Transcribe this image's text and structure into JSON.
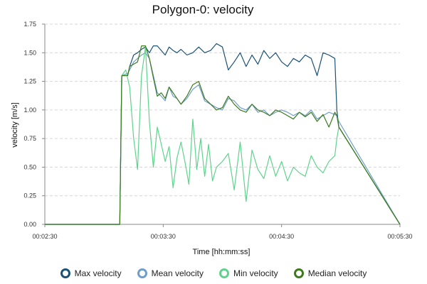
{
  "chart_data": {
    "type": "line",
    "title": "Polygon-0: velocity",
    "xlabel": "Time  [hh:mm:ss]",
    "ylabel": "velocity  [m/s]",
    "xlim": [
      "00:02:30",
      "00:05:30"
    ],
    "ylim": [
      0,
      1.75
    ],
    "x_ticks": [
      "00:02:30",
      "00:03:30",
      "00:04:30",
      "00:05:30"
    ],
    "y_ticks": [
      "0.00",
      "0.25",
      "0.50",
      "0.75",
      "1.00",
      "1.25",
      "1.50",
      "1.75"
    ],
    "grid": true,
    "legend_position": "bottom",
    "series": [
      {
        "name": "Max velocity",
        "color": "#1a5276",
        "x": [
          "00:02:30",
          "00:03:08",
          "00:03:09",
          "00:03:12",
          "00:03:13",
          "00:03:15",
          "00:03:17",
          "00:03:19",
          "00:03:21",
          "00:03:23",
          "00:03:25",
          "00:03:27",
          "00:03:29",
          "00:03:31",
          "00:03:33",
          "00:03:35",
          "00:03:37",
          "00:03:39",
          "00:03:42",
          "00:03:45",
          "00:03:48",
          "00:03:51",
          "00:03:54",
          "00:03:57",
          "00:04:00",
          "00:04:03",
          "00:04:06",
          "00:04:09",
          "00:04:12",
          "00:04:15",
          "00:04:18",
          "00:04:21",
          "00:04:24",
          "00:04:27",
          "00:04:30",
          "00:04:33",
          "00:04:36",
          "00:04:39",
          "00:04:42",
          "00:04:45",
          "00:04:48",
          "00:04:51",
          "00:04:54",
          "00:04:57",
          "00:04:58",
          "00:04:59",
          "00:05:30"
        ],
        "values": [
          0,
          0,
          1.3,
          1.3,
          1.38,
          1.48,
          1.5,
          1.53,
          1.55,
          1.5,
          1.56,
          1.56,
          1.52,
          1.48,
          1.55,
          1.52,
          1.5,
          1.53,
          1.48,
          1.5,
          1.55,
          1.5,
          1.52,
          1.58,
          1.55,
          1.35,
          1.42,
          1.5,
          1.38,
          1.48,
          1.4,
          1.52,
          1.45,
          1.5,
          1.42,
          1.38,
          1.45,
          1.42,
          1.48,
          1.45,
          1.3,
          1.5,
          1.48,
          1.45,
          1.0,
          0.85,
          0
        ]
      },
      {
        "name": "Mean velocity",
        "color": "#6f9ec8",
        "x": [
          "00:02:30",
          "00:03:08",
          "00:03:09",
          "00:03:12",
          "00:03:13",
          "00:03:15",
          "00:03:17",
          "00:03:19",
          "00:03:21",
          "00:03:23",
          "00:03:25",
          "00:03:27",
          "00:03:29",
          "00:03:31",
          "00:03:33",
          "00:03:35",
          "00:03:37",
          "00:03:39",
          "00:03:42",
          "00:03:45",
          "00:03:48",
          "00:03:51",
          "00:03:54",
          "00:03:57",
          "00:04:00",
          "00:04:03",
          "00:04:06",
          "00:04:09",
          "00:04:12",
          "00:04:15",
          "00:04:18",
          "00:04:21",
          "00:04:24",
          "00:04:27",
          "00:04:30",
          "00:04:33",
          "00:04:36",
          "00:04:39",
          "00:04:42",
          "00:04:45",
          "00:04:48",
          "00:04:51",
          "00:04:54",
          "00:04:57",
          "00:04:58",
          "00:04:59",
          "00:05:30"
        ],
        "values": [
          0,
          0,
          1.3,
          1.32,
          1.35,
          1.42,
          1.45,
          1.48,
          1.5,
          1.45,
          1.3,
          1.15,
          1.12,
          1.08,
          1.2,
          1.12,
          1.1,
          1.05,
          1.1,
          1.18,
          1.22,
          1.08,
          1.05,
          1.02,
          1.0,
          1.1,
          1.08,
          1.02,
          1.0,
          1.05,
          0.98,
          1.0,
          0.95,
          0.98,
          1.0,
          0.98,
          0.95,
          0.98,
          0.95,
          1.0,
          0.92,
          0.95,
          0.98,
          0.96,
          0.95,
          0.9,
          0
        ]
      },
      {
        "name": "Min velocity",
        "color": "#5fd38d",
        "x": [
          "00:02:30",
          "00:03:08",
          "00:03:09",
          "00:03:11",
          "00:03:13",
          "00:03:15",
          "00:03:17",
          "00:03:19",
          "00:03:21",
          "00:03:23",
          "00:03:25",
          "00:03:27",
          "00:03:29",
          "00:03:31",
          "00:03:33",
          "00:03:35",
          "00:03:37",
          "00:03:39",
          "00:03:41",
          "00:03:43",
          "00:03:45",
          "00:03:47",
          "00:03:49",
          "00:03:51",
          "00:03:53",
          "00:03:55",
          "00:03:57",
          "00:04:00",
          "00:04:03",
          "00:04:06",
          "00:04:09",
          "00:04:12",
          "00:04:15",
          "00:04:18",
          "00:04:21",
          "00:04:24",
          "00:04:27",
          "00:04:30",
          "00:04:33",
          "00:04:36",
          "00:04:39",
          "00:04:42",
          "00:04:45",
          "00:04:48",
          "00:04:51",
          "00:04:54",
          "00:04:57",
          "00:04:58",
          "00:04:59",
          "00:05:30"
        ],
        "values": [
          0,
          0,
          1.3,
          1.35,
          1.2,
          0.75,
          0.48,
          1.3,
          1.55,
          0.9,
          0.5,
          0.85,
          0.7,
          0.55,
          0.68,
          0.32,
          0.58,
          0.72,
          0.55,
          0.35,
          0.92,
          0.48,
          0.75,
          0.42,
          0.7,
          0.38,
          0.5,
          0.55,
          0.62,
          0.3,
          0.72,
          0.2,
          0.65,
          0.48,
          0.4,
          0.6,
          0.42,
          0.55,
          0.38,
          0.5,
          0.45,
          0.42,
          0.6,
          0.5,
          0.45,
          0.55,
          0.6,
          0.75,
          0.85,
          0
        ]
      },
      {
        "name": "Median velocity",
        "color": "#3c7a1e",
        "x": [
          "00:02:30",
          "00:03:08",
          "00:03:09",
          "00:03:12",
          "00:03:13",
          "00:03:15",
          "00:03:17",
          "00:03:19",
          "00:03:21",
          "00:03:23",
          "00:03:25",
          "00:03:27",
          "00:03:29",
          "00:03:31",
          "00:03:33",
          "00:03:35",
          "00:03:37",
          "00:03:39",
          "00:03:42",
          "00:03:45",
          "00:03:48",
          "00:03:51",
          "00:03:54",
          "00:03:57",
          "00:04:00",
          "00:04:03",
          "00:04:06",
          "00:04:09",
          "00:04:12",
          "00:04:15",
          "00:04:18",
          "00:04:21",
          "00:04:24",
          "00:04:27",
          "00:04:30",
          "00:04:33",
          "00:04:36",
          "00:04:39",
          "00:04:42",
          "00:04:45",
          "00:04:48",
          "00:04:51",
          "00:04:54",
          "00:04:57",
          "00:04:58",
          "00:04:59",
          "00:05:30"
        ],
        "values": [
          0,
          0,
          1.3,
          1.3,
          1.38,
          1.4,
          1.42,
          1.56,
          1.56,
          1.45,
          1.28,
          1.12,
          1.15,
          1.1,
          1.2,
          1.15,
          1.1,
          1.05,
          1.12,
          1.22,
          1.25,
          1.1,
          1.05,
          1.0,
          1.02,
          1.12,
          1.05,
          1.0,
          0.98,
          1.05,
          1.0,
          0.98,
          0.95,
          1.0,
          0.98,
          0.95,
          0.92,
          0.98,
          0.94,
          0.98,
          0.9,
          0.96,
          0.85,
          0.98,
          0.95,
          0.85,
          0
        ]
      }
    ]
  }
}
